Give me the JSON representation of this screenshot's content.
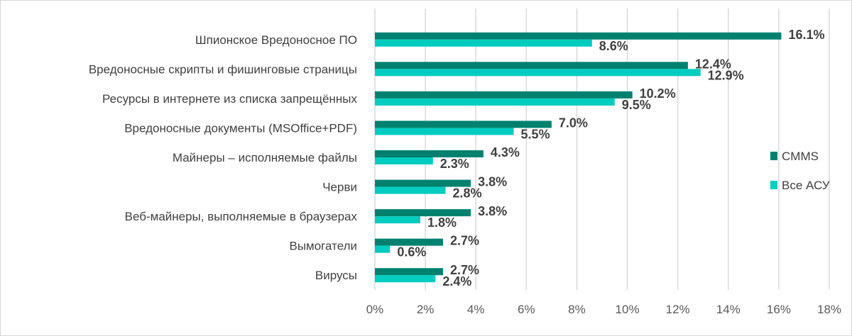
{
  "chart_data": {
    "type": "bar",
    "orientation": "horizontal",
    "title": "",
    "xlabel": "",
    "ylabel": "",
    "xlim": [
      0,
      18
    ],
    "x_ticks": [
      "0%",
      "2%",
      "4%",
      "6%",
      "8%",
      "10%",
      "12%",
      "14%",
      "16%",
      "18%"
    ],
    "grid": true,
    "legend_position": "right",
    "categories": [
      "Шпионское Вредоносное ПО",
      "Вредоносные скрипты и фишинговые страницы",
      "Ресурсы в интернете из списка запрещённых",
      "Вредоносные документы (MSOffice+PDF)",
      "Майнеры – исполняемые файлы",
      "Черви",
      "Веб-майнеры, выполняемые в браузерах",
      "Вымогатели",
      "Вирусы"
    ],
    "series": [
      {
        "name": "CMMS",
        "color": "#008170",
        "values": [
          16.1,
          12.4,
          10.2,
          7.0,
          4.3,
          3.8,
          3.8,
          2.7,
          2.7
        ],
        "labels": [
          "16.1%",
          "12.4%",
          "10.2%",
          "7.0%",
          "4.3%",
          "3.8%",
          "3.8%",
          "2.7%",
          "2.7%"
        ]
      },
      {
        "name": "Все АСУ",
        "color": "#00CCBF",
        "values": [
          8.6,
          12.9,
          9.5,
          5.5,
          2.3,
          2.8,
          1.8,
          0.6,
          2.4
        ],
        "labels": [
          "8.6%",
          "12.9%",
          "9.5%",
          "5.5%",
          "2.3%",
          "2.8%",
          "1.8%",
          "0.6%",
          "2.4%"
        ]
      }
    ]
  }
}
